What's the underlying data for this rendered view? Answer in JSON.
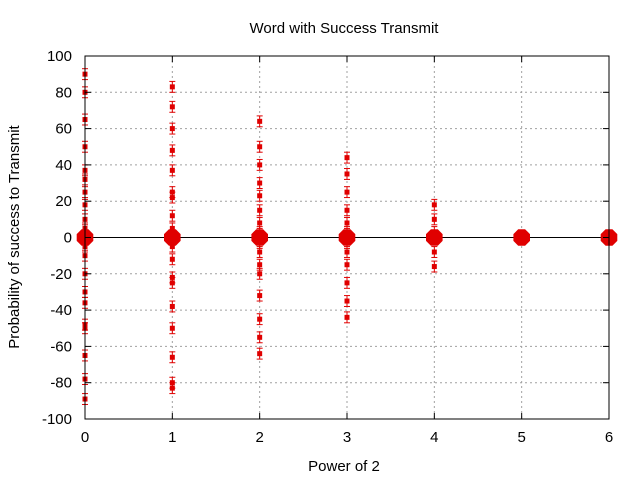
{
  "chart_data": {
    "type": "scatter",
    "title": "Word with Success Transmit",
    "xlabel": "Power of 2",
    "ylabel": "Probability of success to Transmit",
    "xlim": [
      0,
      6
    ],
    "ylim": [
      -100,
      100
    ],
    "x_ticks": [
      0,
      1,
      2,
      3,
      4,
      5,
      6
    ],
    "y_ticks": [
      -100,
      -80,
      -60,
      -40,
      -20,
      0,
      20,
      40,
      60,
      80,
      100
    ],
    "grid": true,
    "zero_line": true,
    "color": "#e00000",
    "series": [
      {
        "style": "errorbars",
        "x": [
          0,
          0,
          0,
          0,
          0,
          0,
          0,
          0,
          0,
          0,
          0,
          0,
          0,
          0,
          0,
          0,
          0,
          0,
          0,
          0,
          1,
          1,
          1,
          1,
          1,
          1,
          1,
          1,
          1,
          1,
          1,
          1,
          1,
          1,
          1,
          1,
          1,
          1,
          2,
          2,
          2,
          2,
          2,
          2,
          2,
          2,
          2,
          2,
          2,
          2,
          2,
          2,
          2,
          2,
          3,
          3,
          3,
          3,
          3,
          3,
          3,
          3,
          3,
          3,
          3,
          3,
          4,
          4,
          4,
          4,
          4
        ],
        "y": [
          90,
          80,
          65,
          50,
          37,
          32,
          25,
          18,
          10,
          5,
          -5,
          -10,
          -20,
          -30,
          -36,
          -48,
          -50,
          -65,
          -78,
          -89,
          83,
          72,
          60,
          48,
          37,
          25,
          22,
          12,
          5,
          -5,
          -12,
          -22,
          -25,
          -38,
          -50,
          -66,
          -80,
          -83,
          64,
          50,
          40,
          30,
          23,
          15,
          8,
          3,
          -3,
          -8,
          -15,
          -20,
          -32,
          -45,
          -55,
          -64,
          44,
          35,
          25,
          15,
          8,
          3,
          -3,
          -8,
          -15,
          -25,
          -35,
          -44,
          18,
          10,
          3,
          -8,
          -16
        ],
        "y_error": 3
      },
      {
        "style": "points-large",
        "x": [
          0,
          1,
          2,
          3,
          4,
          5,
          6
        ],
        "y": [
          0,
          0,
          0,
          0,
          0,
          0,
          0
        ]
      }
    ]
  }
}
